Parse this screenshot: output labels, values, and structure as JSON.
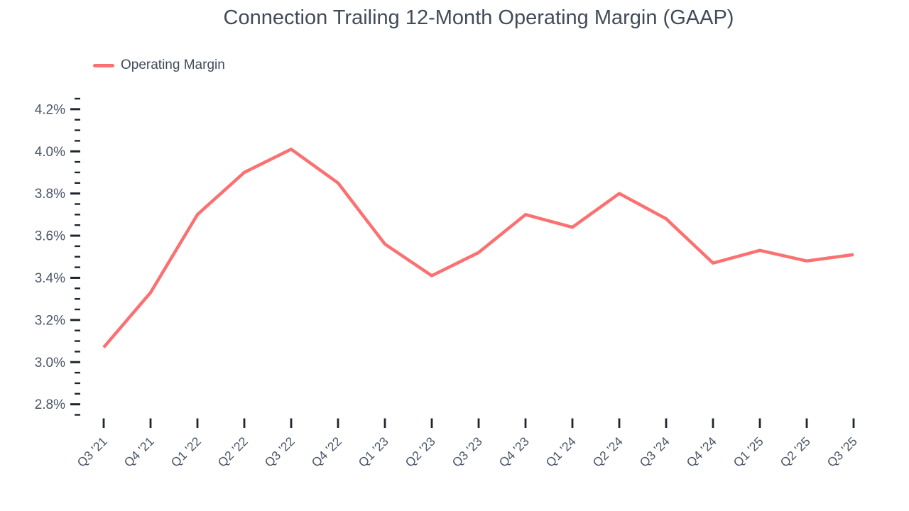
{
  "figure": {
    "title": "Connection Trailing 12-Month Operating Margin (GAAP)"
  },
  "legend": {
    "items": [
      {
        "label": "Operating Margin",
        "color": "#fb7070"
      }
    ]
  },
  "chart_data": {
    "type": "line",
    "title": "Connection Trailing 12-Month Operating Margin (GAAP)",
    "categories": [
      "Q3 '21",
      "Q4 '21",
      "Q1 '22",
      "Q2 '22",
      "Q3 '22",
      "Q4 '22",
      "Q1 '23",
      "Q2 '23",
      "Q3 '23",
      "Q4 '23",
      "Q1 '24",
      "Q2 '24",
      "Q3 '24",
      "Q4 '24",
      "Q1 '25",
      "Q2 '25",
      "Q3 '25"
    ],
    "series": [
      {
        "name": "Operating Margin",
        "color": "#fb7070",
        "values": [
          3.07,
          3.33,
          3.7,
          3.9,
          4.01,
          3.85,
          3.56,
          3.41,
          3.52,
          3.7,
          3.64,
          3.8,
          3.68,
          3.47,
          3.53,
          3.48,
          3.51
        ]
      }
    ],
    "unit": "%",
    "xlabel": "",
    "ylabel": "",
    "ylim": [
      2.75,
      4.25
    ],
    "y_ticks": {
      "values": [
        2.8,
        3.0,
        3.2,
        3.4,
        3.6,
        3.8,
        4.0,
        4.2
      ],
      "labels": [
        "2.8%",
        "3.0%",
        "3.2%",
        "3.4%",
        "3.6%",
        "3.8%",
        "4.0%",
        "4.2%"
      ],
      "minor_step": 0.05
    },
    "grid": false,
    "markers": false,
    "legend_position": "top-left",
    "x_label_rotation_deg": 45
  },
  "colors": {
    "line": "#fb7070",
    "title_text": "#414b5a",
    "tick_label": "#4a5565",
    "tick_mark": "#20262e",
    "background": "#ffffff"
  }
}
